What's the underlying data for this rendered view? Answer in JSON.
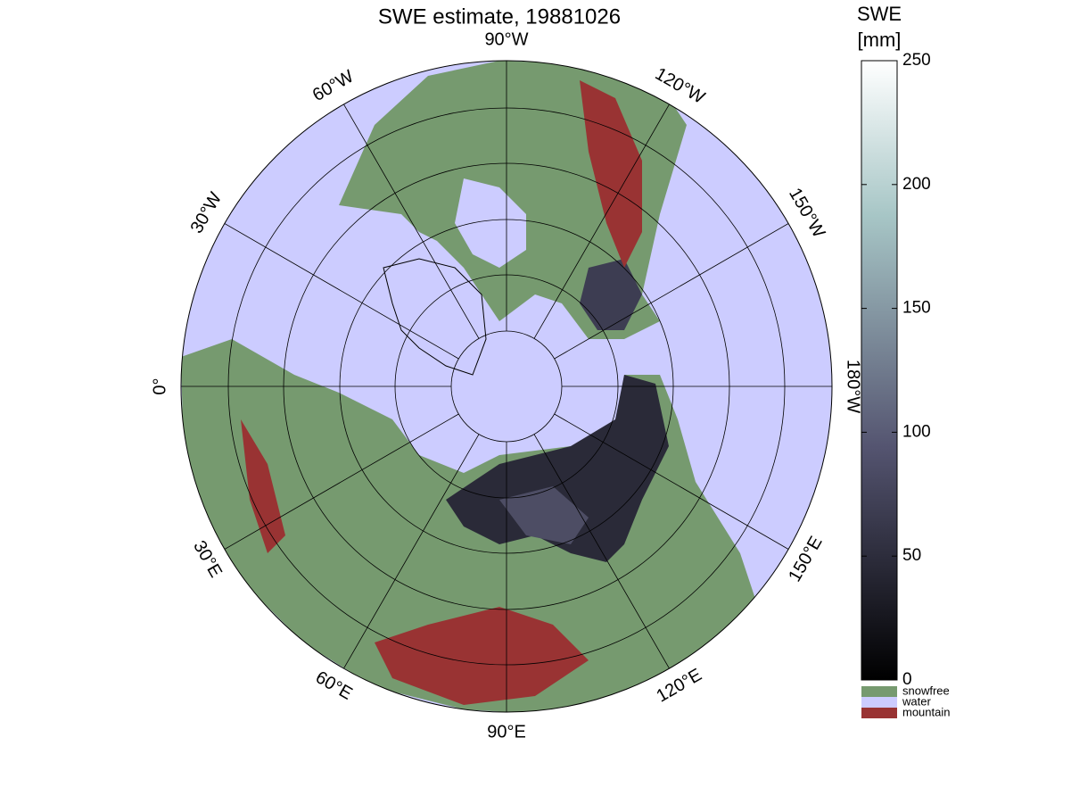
{
  "title": "SWE estimate, 19881026",
  "meridian_labels": [
    "90°W",
    "120°W",
    "150°W",
    "180°W",
    "150°E",
    "120°E",
    "90°E",
    "60°E",
    "30°E",
    "0°",
    "30°W",
    "60°W"
  ],
  "colorbar": {
    "title": [
      "SWE",
      "[mm]"
    ],
    "lim": [
      0,
      250
    ],
    "ticks": [
      0,
      50,
      100,
      150,
      200,
      250
    ]
  },
  "legend": [
    {
      "name": "snowfree",
      "color": "#769a6f"
    },
    {
      "name": "water",
      "color": "#ccccff"
    },
    {
      "name": "mountain",
      "color": "#993333"
    }
  ]
}
